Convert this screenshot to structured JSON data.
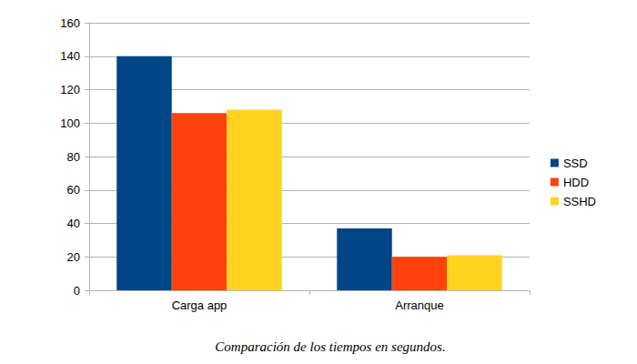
{
  "chart_data": {
    "type": "bar",
    "caption": "Comparación de los tiempos en segundos.",
    "categories": [
      "Carga app",
      "Arranque"
    ],
    "series": [
      {
        "name": "SSD",
        "color": "#004586",
        "values": [
          140,
          37
        ]
      },
      {
        "name": "HDD",
        "color": "#ff420e",
        "values": [
          106,
          20
        ]
      },
      {
        "name": "SSHD",
        "color": "#ffd320",
        "values": [
          108,
          21
        ]
      }
    ],
    "ylim": [
      0,
      160
    ],
    "yticks": [
      0,
      20,
      40,
      60,
      80,
      100,
      120,
      140,
      160
    ],
    "grid": true,
    "legend": "right"
  }
}
